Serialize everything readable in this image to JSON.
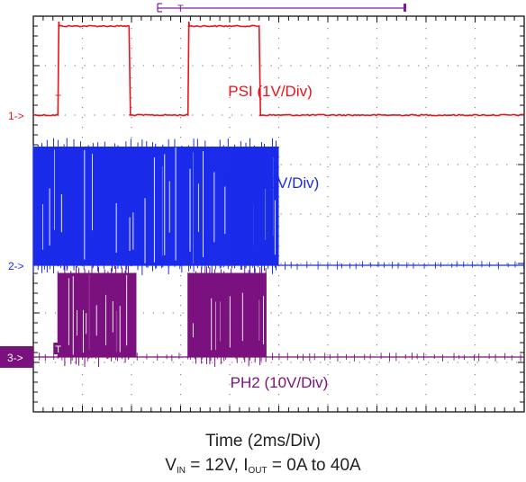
{
  "chart_data": {
    "type": "oscilloscope",
    "title": "",
    "xlabel": "Time  (2ms/Div)",
    "x_unit_per_div_ms": 2,
    "x_divisions": 10,
    "y_divisions": 8,
    "grid": true,
    "trigger_marker": "T",
    "colors": {
      "grid_frame": "#111111",
      "grid_dots": "#888888",
      "trigger_bar": "#7a1f9a"
    },
    "conditions": {
      "v_sym": "V",
      "v_sub": "IN",
      "v_eq": " = 12V, ",
      "i_sym": "I",
      "i_sub": "OUT",
      "i_eq": " = 0A to 40A"
    },
    "series": [
      {
        "channel_marker": "1->",
        "name": "PSI (1V/Div)",
        "color": "#e8141b",
        "scale_v_per_div": 1,
        "signal": "square",
        "low_v": 0,
        "high_v": 1.8,
        "transitions_ms": [
          {
            "t": 1.0,
            "to": "high"
          },
          {
            "t": 3.9,
            "to": "low"
          },
          {
            "t": 6.3,
            "to": "high"
          },
          {
            "t": 9.2,
            "to": "low"
          }
        ]
      },
      {
        "channel_marker": "2->",
        "name": "PH1 (10V/Div)",
        "color": "#1a2bea",
        "scale_v_per_div": 10,
        "signal": "switching",
        "low_v": 0,
        "high_v": 24,
        "switching_intervals_ms": [
          [
            0,
            10
          ]
        ]
      },
      {
        "channel_marker": "3->",
        "name": "PH2 (10V/Div)",
        "color": "#7b117e",
        "scale_v_per_div": 10,
        "signal": "switching",
        "low_v": 0,
        "high_v": 17,
        "switching_intervals_ms": [
          [
            1.0,
            4.2
          ],
          [
            6.3,
            9.5
          ]
        ]
      }
    ]
  }
}
